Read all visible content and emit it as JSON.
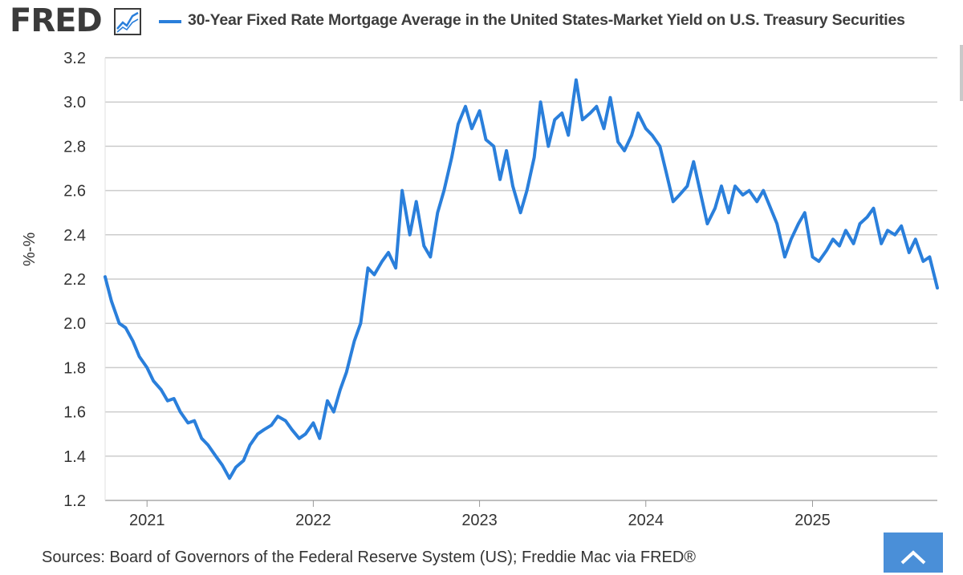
{
  "header": {
    "logo_text": "FRED",
    "logo_icon": "line-chart-icon",
    "legend_label": "30-Year Fixed Rate Mortgage Average in the United States-Market Yield on U.S. Treasury Securities"
  },
  "footer": {
    "sources": "Sources: Board of Governors of the Federal Reserve System (US); Freddie Mac via FRED®",
    "back_to_top_icon": "chevron-up-icon"
  },
  "colors": {
    "series": "#2a7fdb",
    "grid": "#cccccc",
    "plot_bg": "#ffffff",
    "logo": "#3b3b3b",
    "button": "#4a8fd8"
  },
  "chart_data": {
    "type": "line",
    "title": "",
    "xlabel": "",
    "ylabel": "%-%",
    "ylim": [
      1.2,
      3.2
    ],
    "yticks": [
      "1.2",
      "1.4",
      "1.6",
      "1.8",
      "2.0",
      "2.2",
      "2.4",
      "2.6",
      "2.8",
      "3.0",
      "3.2"
    ],
    "xticks": [
      "2021",
      "2022",
      "2023",
      "2024",
      "2025"
    ],
    "xlim": [
      "2020-10-01",
      "2025-10-02"
    ],
    "grid": true,
    "legend": "top",
    "series": [
      {
        "name": "30-Year Fixed Rate Mortgage Average in the United States-Market Yield on U.S. Treasury Securities",
        "points": [
          [
            "2020-10-01",
            2.21
          ],
          [
            "2020-10-15",
            2.1
          ],
          [
            "2020-11-01",
            2.0
          ],
          [
            "2020-11-15",
            1.98
          ],
          [
            "2020-12-01",
            1.92
          ],
          [
            "2020-12-15",
            1.85
          ],
          [
            "2021-01-01",
            1.8
          ],
          [
            "2021-01-15",
            1.74
          ],
          [
            "2021-02-01",
            1.7
          ],
          [
            "2021-02-15",
            1.65
          ],
          [
            "2021-03-01",
            1.66
          ],
          [
            "2021-03-15",
            1.6
          ],
          [
            "2021-04-01",
            1.55
          ],
          [
            "2021-04-15",
            1.56
          ],
          [
            "2021-05-01",
            1.48
          ],
          [
            "2021-05-15",
            1.45
          ],
          [
            "2021-06-01",
            1.4
          ],
          [
            "2021-06-15",
            1.36
          ],
          [
            "2021-07-01",
            1.3
          ],
          [
            "2021-07-15",
            1.35
          ],
          [
            "2021-08-01",
            1.38
          ],
          [
            "2021-08-15",
            1.45
          ],
          [
            "2021-09-01",
            1.5
          ],
          [
            "2021-09-15",
            1.52
          ],
          [
            "2021-10-01",
            1.54
          ],
          [
            "2021-10-15",
            1.58
          ],
          [
            "2021-11-01",
            1.56
          ],
          [
            "2021-11-15",
            1.52
          ],
          [
            "2021-12-01",
            1.48
          ],
          [
            "2021-12-15",
            1.5
          ],
          [
            "2022-01-01",
            1.55
          ],
          [
            "2022-01-15",
            1.48
          ],
          [
            "2022-02-01",
            1.65
          ],
          [
            "2022-02-15",
            1.6
          ],
          [
            "2022-03-01",
            1.7
          ],
          [
            "2022-03-15",
            1.78
          ],
          [
            "2022-04-01",
            1.92
          ],
          [
            "2022-04-15",
            2.0
          ],
          [
            "2022-05-01",
            2.25
          ],
          [
            "2022-05-15",
            2.22
          ],
          [
            "2022-06-01",
            2.28
          ],
          [
            "2022-06-15",
            2.32
          ],
          [
            "2022-07-01",
            2.25
          ],
          [
            "2022-07-15",
            2.6
          ],
          [
            "2022-08-01",
            2.4
          ],
          [
            "2022-08-15",
            2.55
          ],
          [
            "2022-09-01",
            2.35
          ],
          [
            "2022-09-15",
            2.3
          ],
          [
            "2022-10-01",
            2.5
          ],
          [
            "2022-10-15",
            2.6
          ],
          [
            "2022-11-01",
            2.75
          ],
          [
            "2022-11-15",
            2.9
          ],
          [
            "2022-12-01",
            2.98
          ],
          [
            "2022-12-15",
            2.88
          ],
          [
            "2023-01-01",
            2.96
          ],
          [
            "2023-01-15",
            2.83
          ],
          [
            "2023-02-01",
            2.8
          ],
          [
            "2023-02-15",
            2.65
          ],
          [
            "2023-03-01",
            2.78
          ],
          [
            "2023-03-15",
            2.62
          ],
          [
            "2023-04-01",
            2.5
          ],
          [
            "2023-04-15",
            2.6
          ],
          [
            "2023-05-01",
            2.75
          ],
          [
            "2023-05-15",
            3.0
          ],
          [
            "2023-06-01",
            2.8
          ],
          [
            "2023-06-15",
            2.92
          ],
          [
            "2023-07-01",
            2.95
          ],
          [
            "2023-07-15",
            2.85
          ],
          [
            "2023-08-01",
            3.1
          ],
          [
            "2023-08-15",
            2.92
          ],
          [
            "2023-09-01",
            2.95
          ],
          [
            "2023-09-15",
            2.98
          ],
          [
            "2023-10-01",
            2.88
          ],
          [
            "2023-10-15",
            3.02
          ],
          [
            "2023-11-01",
            2.82
          ],
          [
            "2023-11-15",
            2.78
          ],
          [
            "2023-12-01",
            2.85
          ],
          [
            "2023-12-15",
            2.95
          ],
          [
            "2024-01-01",
            2.88
          ],
          [
            "2024-01-15",
            2.85
          ],
          [
            "2024-02-01",
            2.8
          ],
          [
            "2024-02-15",
            2.68
          ],
          [
            "2024-03-01",
            2.55
          ],
          [
            "2024-03-15",
            2.58
          ],
          [
            "2024-04-01",
            2.62
          ],
          [
            "2024-04-15",
            2.73
          ],
          [
            "2024-05-01",
            2.58
          ],
          [
            "2024-05-15",
            2.45
          ],
          [
            "2024-06-01",
            2.52
          ],
          [
            "2024-06-15",
            2.62
          ],
          [
            "2024-07-01",
            2.5
          ],
          [
            "2024-07-15",
            2.62
          ],
          [
            "2024-08-01",
            2.58
          ],
          [
            "2024-08-15",
            2.6
          ],
          [
            "2024-09-01",
            2.55
          ],
          [
            "2024-09-15",
            2.6
          ],
          [
            "2024-10-01",
            2.52
          ],
          [
            "2024-10-15",
            2.45
          ],
          [
            "2024-11-01",
            2.3
          ],
          [
            "2024-11-15",
            2.38
          ],
          [
            "2024-12-01",
            2.45
          ],
          [
            "2024-12-15",
            2.5
          ],
          [
            "2025-01-01",
            2.3
          ],
          [
            "2025-01-15",
            2.28
          ],
          [
            "2025-02-01",
            2.33
          ],
          [
            "2025-02-15",
            2.38
          ],
          [
            "2025-03-01",
            2.35
          ],
          [
            "2025-03-15",
            2.42
          ],
          [
            "2025-04-01",
            2.36
          ],
          [
            "2025-04-15",
            2.45
          ],
          [
            "2025-05-01",
            2.48
          ],
          [
            "2025-05-15",
            2.52
          ],
          [
            "2025-06-01",
            2.36
          ],
          [
            "2025-06-15",
            2.42
          ],
          [
            "2025-07-01",
            2.4
          ],
          [
            "2025-07-15",
            2.44
          ],
          [
            "2025-08-01",
            2.32
          ],
          [
            "2025-08-15",
            2.38
          ],
          [
            "2025-09-01",
            2.28
          ],
          [
            "2025-09-15",
            2.3
          ],
          [
            "2025-10-02",
            2.16
          ]
        ]
      }
    ]
  }
}
